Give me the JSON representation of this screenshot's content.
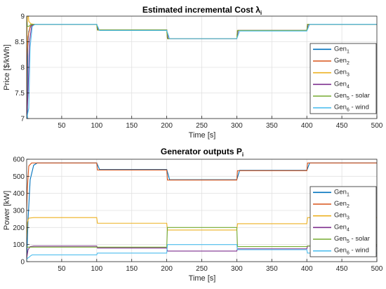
{
  "chart_data": [
    {
      "type": "line",
      "title": "Estimated incremental Cost λ",
      "title_subscript": "i",
      "xlabel": "Time [s]",
      "ylabel": "Price [$/kWh]",
      "xlim": [
        0,
        500
      ],
      "ylim": [
        7,
        9
      ],
      "xticks": [
        50,
        100,
        150,
        200,
        250,
        300,
        350,
        400,
        450,
        500
      ],
      "yticks": [
        7,
        7.5,
        8,
        8.5,
        9
      ],
      "grid": true,
      "legend_position": "right",
      "series": [
        {
          "label": "Gen",
          "sub": "1",
          "suffix": "",
          "color": "#0072BD",
          "points": [
            [
              0,
              7
            ],
            [
              1,
              7
            ],
            [
              1.5,
              8.4
            ],
            [
              3,
              8.7
            ],
            [
              6,
              8.82
            ],
            [
              10,
              8.84
            ],
            [
              100,
              8.84
            ],
            [
              102,
              8.73
            ],
            [
              200,
              8.73
            ],
            [
              202,
              8.56
            ],
            [
              300,
              8.56
            ],
            [
              302,
              8.72
            ],
            [
              400,
              8.72
            ],
            [
              402,
              8.84
            ],
            [
              500,
              8.84
            ]
          ]
        },
        {
          "label": "Gen",
          "sub": "2",
          "suffix": "",
          "color": "#D95319",
          "points": [
            [
              0,
              7
            ],
            [
              0.5,
              8.2
            ],
            [
              2,
              8.6
            ],
            [
              5,
              8.8
            ],
            [
              10,
              8.84
            ],
            [
              100,
              8.84
            ],
            [
              101,
              8.73
            ],
            [
              200,
              8.73
            ],
            [
              201,
              8.56
            ],
            [
              300,
              8.56
            ],
            [
              301,
              8.72
            ],
            [
              400,
              8.72
            ],
            [
              401,
              8.84
            ],
            [
              500,
              8.84
            ]
          ]
        },
        {
          "label": "Gen",
          "sub": "3",
          "suffix": "",
          "color": "#EDB120",
          "points": [
            [
              0,
              8.3
            ],
            [
              1,
              9
            ],
            [
              2.5,
              9
            ],
            [
              3,
              8.9
            ],
            [
              6,
              8.85
            ],
            [
              10,
              8.84
            ],
            [
              100,
              8.84
            ],
            [
              101,
              8.73
            ],
            [
              200,
              8.73
            ],
            [
              201,
              8.56
            ],
            [
              300,
              8.56
            ],
            [
              301,
              8.72
            ],
            [
              400,
              8.72
            ],
            [
              401,
              8.84
            ],
            [
              500,
              8.84
            ]
          ]
        },
        {
          "label": "Gen",
          "sub": "4",
          "suffix": "",
          "color": "#7E2F8E",
          "points": [
            [
              0,
              7
            ],
            [
              2,
              7.5
            ],
            [
              4,
              8.5
            ],
            [
              7,
              8.8
            ],
            [
              10,
              8.84
            ],
            [
              100,
              8.84
            ],
            [
              102,
              8.73
            ],
            [
              200,
              8.73
            ],
            [
              202,
              8.56
            ],
            [
              300,
              8.56
            ],
            [
              302,
              8.72
            ],
            [
              400,
              8.72
            ],
            [
              402,
              8.84
            ],
            [
              500,
              8.84
            ]
          ]
        },
        {
          "label": "Gen",
          "sub": "5",
          "suffix": " - solar",
          "color": "#77AC30",
          "points": [
            [
              0,
              8.9
            ],
            [
              1,
              8.8
            ],
            [
              3,
              8.8
            ],
            [
              6,
              8.84
            ],
            [
              100,
              8.84
            ],
            [
              101,
              8.73
            ],
            [
              200,
              8.73
            ],
            [
              201,
              8.56
            ],
            [
              300,
              8.56
            ],
            [
              301,
              8.72
            ],
            [
              400,
              8.72
            ],
            [
              401,
              8.84
            ],
            [
              500,
              8.84
            ]
          ]
        },
        {
          "label": "Gen",
          "sub": "6",
          "suffix": " - wind",
          "color": "#4DBEEE",
          "points": [
            [
              0,
              7
            ],
            [
              3,
              7.2
            ],
            [
              5,
              8.4
            ],
            [
              8,
              8.8
            ],
            [
              12,
              8.84
            ],
            [
              100,
              8.84
            ],
            [
              104,
              8.72
            ],
            [
              200,
              8.72
            ],
            [
              204,
              8.56
            ],
            [
              300,
              8.56
            ],
            [
              304,
              8.71
            ],
            [
              400,
              8.71
            ],
            [
              404,
              8.84
            ],
            [
              500,
              8.84
            ]
          ]
        }
      ]
    },
    {
      "type": "line",
      "title": "Generator outputs P",
      "title_subscript": "i",
      "xlabel": "Time [s]",
      "ylabel": "Power [kW]",
      "xlim": [
        0,
        500
      ],
      "ylim": [
        0,
        600
      ],
      "xticks": [
        50,
        100,
        150,
        200,
        250,
        300,
        350,
        400,
        450,
        500
      ],
      "yticks": [
        0,
        100,
        200,
        300,
        400,
        500,
        600
      ],
      "grid": true,
      "legend_position": "right",
      "series": [
        {
          "label": "Gen",
          "sub": "1",
          "suffix": "",
          "color": "#0072BD",
          "points": [
            [
              0,
              0
            ],
            [
              2,
              250
            ],
            [
              5,
              480
            ],
            [
              10,
              565
            ],
            [
              15,
              578
            ],
            [
              100,
              578
            ],
            [
              104,
              540
            ],
            [
              200,
              540
            ],
            [
              204,
              480
            ],
            [
              300,
              480
            ],
            [
              304,
              535
            ],
            [
              400,
              535
            ],
            [
              404,
              578
            ],
            [
              500,
              578
            ]
          ]
        },
        {
          "label": "Gen",
          "sub": "2",
          "suffix": "",
          "color": "#D95319",
          "points": [
            [
              0,
              300
            ],
            [
              1,
              430
            ],
            [
              3,
              560
            ],
            [
              7,
              578
            ],
            [
              100,
              578
            ],
            [
              101,
              537
            ],
            [
              200,
              537
            ],
            [
              201,
              478
            ],
            [
              300,
              478
            ],
            [
              301,
              533
            ],
            [
              400,
              533
            ],
            [
              401,
              578
            ],
            [
              500,
              578
            ]
          ]
        },
        {
          "label": "Gen",
          "sub": "3",
          "suffix": "",
          "color": "#EDB120",
          "points": [
            [
              0,
              130
            ],
            [
              1,
              230
            ],
            [
              3,
              255
            ],
            [
              10,
              258
            ],
            [
              100,
              258
            ],
            [
              101,
              225
            ],
            [
              200,
              225
            ],
            [
              201,
              185
            ],
            [
              300,
              185
            ],
            [
              301,
              222
            ],
            [
              400,
              222
            ],
            [
              401,
              258
            ],
            [
              500,
              258
            ]
          ]
        },
        {
          "label": "Gen",
          "sub": "4",
          "suffix": "",
          "color": "#7E2F8E",
          "points": [
            [
              0,
              20
            ],
            [
              2,
              70
            ],
            [
              5,
              88
            ],
            [
              10,
              91
            ],
            [
              100,
              91
            ],
            [
              101,
              80
            ],
            [
              200,
              80
            ],
            [
              201,
              62
            ],
            [
              300,
              62
            ],
            [
              301,
              75
            ],
            [
              400,
              75
            ],
            [
              401,
              91
            ],
            [
              500,
              91
            ]
          ]
        },
        {
          "label": "Gen",
          "sub": "5",
          "suffix": " - solar",
          "color": "#77AC30",
          "points": [
            [
              0,
              85
            ],
            [
              100,
              85
            ],
            [
              101,
              85
            ],
            [
              200,
              85
            ],
            [
              201,
              200
            ],
            [
              300,
              200
            ],
            [
              301,
              88
            ],
            [
              400,
              88
            ],
            [
              401,
              92
            ],
            [
              500,
              100
            ]
          ]
        },
        {
          "label": "Gen",
          "sub": "6",
          "suffix": " - wind",
          "color": "#4DBEEE",
          "points": [
            [
              0,
              15
            ],
            [
              3,
              25
            ],
            [
              6,
              35
            ],
            [
              8,
              40
            ],
            [
              100,
              40
            ],
            [
              101,
              50
            ],
            [
              200,
              50
            ],
            [
              201,
              100
            ],
            [
              300,
              100
            ],
            [
              301,
              70
            ],
            [
              400,
              70
            ],
            [
              401,
              50
            ],
            [
              500,
              50
            ]
          ]
        }
      ]
    }
  ]
}
